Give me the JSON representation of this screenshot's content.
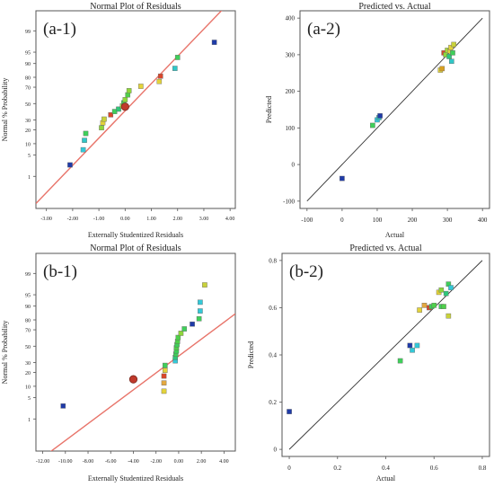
{
  "chart_data": [
    {
      "id": "a1",
      "type": "scatter",
      "panel_label": "(a-1)",
      "title": "Normal Plot of Residuals",
      "xlabel": "Externally Studentized Residuals",
      "ylabel": "Normal % Probability",
      "xlim": [
        -3.4,
        4.2
      ],
      "x_ticks": [
        "-3.00",
        "-2.00",
        "-1.00",
        "0.00",
        "1.00",
        "2.00",
        "3.00",
        "4.00"
      ],
      "x_tick_values": [
        -3,
        -2,
        -1,
        0,
        1,
        2,
        3,
        4
      ],
      "y_ticks": [
        "1",
        "5",
        "10",
        "20",
        "30",
        "50",
        "70",
        "80",
        "90",
        "95",
        "99"
      ],
      "y_tick_values": [
        1,
        5,
        10,
        20,
        30,
        50,
        70,
        80,
        90,
        95,
        99
      ],
      "reference_line": {
        "x": [
          -3.4,
          4.2
        ],
        "p": [
          0.07,
          99.97
        ]
      },
      "highlight": {
        "x": 0.0,
        "p": 46,
        "color": "#c0392b"
      },
      "points": [
        {
          "x": -2.1,
          "p": 2.5,
          "c": "#1f3ba8"
        },
        {
          "x": -1.6,
          "p": 7,
          "c": "#33c9d8"
        },
        {
          "x": -1.55,
          "p": 12,
          "c": "#2fc7c7"
        },
        {
          "x": -1.5,
          "p": 17,
          "c": "#3fcf5a"
        },
        {
          "x": -0.9,
          "p": 22,
          "c": "#8fd63a"
        },
        {
          "x": -0.85,
          "p": 27,
          "c": "#e3d33a"
        },
        {
          "x": -0.8,
          "p": 31,
          "c": "#c9d23a"
        },
        {
          "x": -0.55,
          "p": 36,
          "c": "#d9472b"
        },
        {
          "x": -0.4,
          "p": 40,
          "c": "#3fcf5a"
        },
        {
          "x": -0.25,
          "p": 43,
          "c": "#2fc77a"
        },
        {
          "x": -0.1,
          "p": 47,
          "c": "#a8d83a"
        },
        {
          "x": -0.05,
          "p": 51,
          "c": "#3fcf5a"
        },
        {
          "x": 0.0,
          "p": 55,
          "c": "#90d83a"
        },
        {
          "x": 0.1,
          "p": 61,
          "c": "#4fd04a"
        },
        {
          "x": 0.15,
          "p": 66,
          "c": "#8fd63a"
        },
        {
          "x": 0.6,
          "p": 71,
          "c": "#e3d33a"
        },
        {
          "x": 1.3,
          "p": 76,
          "c": "#e3d33a"
        },
        {
          "x": 1.35,
          "p": 81,
          "c": "#d9472b"
        },
        {
          "x": 1.9,
          "p": 87,
          "c": "#2fc7c7"
        },
        {
          "x": 2.0,
          "p": 93,
          "c": "#3fcf5a"
        },
        {
          "x": 3.4,
          "p": 97.5,
          "c": "#1f3ba8"
        }
      ]
    },
    {
      "id": "a2",
      "type": "scatter",
      "panel_label": "(a-2)",
      "title": "Predicted vs. Actual",
      "xlabel": "Actual",
      "ylabel": "Predicted",
      "xlim": [
        -120,
        420
      ],
      "ylim": [
        -120,
        420
      ],
      "x_ticks": [
        "-100",
        "0",
        "100",
        "200",
        "300",
        "400"
      ],
      "x_tick_values": [
        -100,
        0,
        100,
        200,
        300,
        400
      ],
      "y_ticks": [
        "-100",
        "0",
        "100",
        "200",
        "300",
        "400"
      ],
      "y_tick_values": [
        -100,
        0,
        100,
        200,
        300,
        400
      ],
      "diagonal": [
        -100,
        400
      ],
      "points": [
        {
          "x": 0,
          "y": -38,
          "c": "#1f3ba8"
        },
        {
          "x": 87,
          "y": 107,
          "c": "#3fcf5a"
        },
        {
          "x": 100,
          "y": 122,
          "c": "#33c9d8"
        },
        {
          "x": 105,
          "y": 128,
          "c": "#2fc7c7"
        },
        {
          "x": 108,
          "y": 133,
          "c": "#1f3ba8"
        },
        {
          "x": 280,
          "y": 258,
          "c": "#e3d33a"
        },
        {
          "x": 285,
          "y": 262,
          "c": "#d9a020"
        },
        {
          "x": 290,
          "y": 305,
          "c": "#d9472b"
        },
        {
          "x": 295,
          "y": 300,
          "c": "#8fd63a"
        },
        {
          "x": 300,
          "y": 312,
          "c": "#a8d83a"
        },
        {
          "x": 305,
          "y": 295,
          "c": "#2fc77a"
        },
        {
          "x": 307,
          "y": 310,
          "c": "#e3d33a"
        },
        {
          "x": 310,
          "y": 320,
          "c": "#e3d33a"
        },
        {
          "x": 312,
          "y": 282,
          "c": "#2fc7c7"
        },
        {
          "x": 315,
          "y": 305,
          "c": "#3fcf5a"
        },
        {
          "x": 318,
          "y": 328,
          "c": "#c9d23a"
        }
      ]
    },
    {
      "id": "b1",
      "type": "scatter",
      "panel_label": "(b-1)",
      "title": "Normal Plot of Residuals",
      "xlabel": "Externally Studentized Residuals",
      "ylabel": "Normal % Probability",
      "xlim": [
        -12.6,
        5.0
      ],
      "x_ticks": [
        "-12.00",
        "-10.00",
        "-8.00",
        "-6.00",
        "-4.00",
        "-2.00",
        "0.00",
        "2.00",
        "4.00"
      ],
      "x_tick_values": [
        -12,
        -10,
        -8,
        -6,
        -4,
        -2,
        0,
        2,
        4
      ],
      "y_ticks": [
        "1",
        "5",
        "10",
        "20",
        "30",
        "50",
        "70",
        "80",
        "90",
        "95",
        "99"
      ],
      "y_tick_values": [
        1,
        5,
        10,
        20,
        30,
        50,
        70,
        80,
        90,
        95,
        99
      ],
      "reference_line": {
        "x": [
          -12.6,
          5.0
        ],
        "p": [
          0.01,
          85.0
        ]
      },
      "highlight": {
        "x": -4.0,
        "p": 14.5,
        "color": "#c0392b"
      },
      "points": [
        {
          "x": -10.2,
          "p": 2.8,
          "c": "#1f3ba8"
        },
        {
          "x": -1.3,
          "p": 7.5,
          "c": "#e3d33a"
        },
        {
          "x": -1.3,
          "p": 12,
          "c": "#e3a840"
        },
        {
          "x": -1.3,
          "p": 17,
          "c": "#d9472b"
        },
        {
          "x": -1.2,
          "p": 22,
          "c": "#e3d33a"
        },
        {
          "x": -1.2,
          "p": 27,
          "c": "#3fcf5a"
        },
        {
          "x": -0.3,
          "p": 32,
          "c": "#33c9d8"
        },
        {
          "x": -0.3,
          "p": 36,
          "c": "#2fc77a"
        },
        {
          "x": -0.25,
          "p": 40,
          "c": "#3fcf5a"
        },
        {
          "x": -0.2,
          "p": 44,
          "c": "#3fcf5a"
        },
        {
          "x": -0.2,
          "p": 48,
          "c": "#4fd04a"
        },
        {
          "x": -0.15,
          "p": 52,
          "c": "#3fcf5a"
        },
        {
          "x": -0.1,
          "p": 56,
          "c": "#4fd04a"
        },
        {
          "x": -0.05,
          "p": 61,
          "c": "#4fd04a"
        },
        {
          "x": 0.2,
          "p": 66,
          "c": "#8fd63a"
        },
        {
          "x": 0.5,
          "p": 71,
          "c": "#3fcf5a"
        },
        {
          "x": 1.2,
          "p": 76,
          "c": "#1f3ba8"
        },
        {
          "x": 1.8,
          "p": 81,
          "c": "#3fcf5a"
        },
        {
          "x": 1.9,
          "p": 87,
          "c": "#33c9d8"
        },
        {
          "x": 1.9,
          "p": 92,
          "c": "#33c9d8"
        },
        {
          "x": 2.3,
          "p": 97.5,
          "c": "#c9d23a"
        }
      ]
    },
    {
      "id": "b2",
      "type": "scatter",
      "panel_label": "(b-2)",
      "title": "Predicted vs. Actual",
      "xlabel": "Actual",
      "ylabel": "Predicted",
      "xlim": [
        -0.03,
        0.83
      ],
      "ylim": [
        -0.03,
        0.83
      ],
      "x_ticks": [
        "0",
        "0.2",
        "0.4",
        "0.6",
        "0.8"
      ],
      "x_tick_values": [
        0,
        0.2,
        0.4,
        0.6,
        0.8
      ],
      "y_ticks": [
        "0",
        "0.2",
        "0.4",
        "0.6",
        "0.8"
      ],
      "y_tick_values": [
        0,
        0.2,
        0.4,
        0.6,
        0.8
      ],
      "diagonal": [
        0,
        0.8
      ],
      "points": [
        {
          "x": 0.0,
          "y": 0.16,
          "c": "#1f3ba8"
        },
        {
          "x": 0.46,
          "y": 0.375,
          "c": "#3fcf5a"
        },
        {
          "x": 0.5,
          "y": 0.44,
          "c": "#1f3ba8"
        },
        {
          "x": 0.51,
          "y": 0.42,
          "c": "#33c9d8"
        },
        {
          "x": 0.53,
          "y": 0.44,
          "c": "#33c9d8"
        },
        {
          "x": 0.54,
          "y": 0.59,
          "c": "#e3d33a"
        },
        {
          "x": 0.56,
          "y": 0.61,
          "c": "#e3a840"
        },
        {
          "x": 0.58,
          "y": 0.6,
          "c": "#d9472b"
        },
        {
          "x": 0.59,
          "y": 0.605,
          "c": "#3fcf5a"
        },
        {
          "x": 0.6,
          "y": 0.61,
          "c": "#4fd04a"
        },
        {
          "x": 0.62,
          "y": 0.665,
          "c": "#e3d33a"
        },
        {
          "x": 0.63,
          "y": 0.675,
          "c": "#8fd63a"
        },
        {
          "x": 0.63,
          "y": 0.605,
          "c": "#3fcf5a"
        },
        {
          "x": 0.64,
          "y": 0.605,
          "c": "#4fd04a"
        },
        {
          "x": 0.65,
          "y": 0.66,
          "c": "#2fc77a"
        },
        {
          "x": 0.66,
          "y": 0.7,
          "c": "#3fcf5a"
        },
        {
          "x": 0.67,
          "y": 0.685,
          "c": "#33c9d8"
        },
        {
          "x": 0.66,
          "y": 0.565,
          "c": "#c9d23a"
        }
      ]
    }
  ]
}
